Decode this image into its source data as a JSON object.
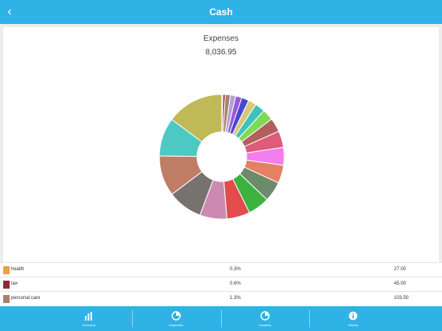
{
  "header": {
    "title": "Cash",
    "back_icon": "chevron-left-icon"
  },
  "chart_data": {
    "type": "pie",
    "title": "Expenses",
    "total": "8,036.95",
    "donut": true,
    "slices": [
      {
        "color": "#e8a04b",
        "value": 0.3
      },
      {
        "color": "#8b2b33",
        "value": 0.6
      },
      {
        "color": "#a7826a",
        "value": 1.3
      },
      {
        "color": "#b1a1ce",
        "value": 1.4
      },
      {
        "color": "#9a58d8",
        "value": 1.6
      },
      {
        "color": "#4747d4",
        "value": 1.9
      },
      {
        "color": "#d8c67a",
        "value": 2.1
      },
      {
        "color": "#3fc1be",
        "value": 2.6
      },
      {
        "color": "#7ed956",
        "value": 2.9
      },
      {
        "color": "#b45e5e",
        "value": 3.6
      },
      {
        "color": "#e05a7a",
        "value": 4.3
      },
      {
        "color": "#f37ded",
        "value": 4.6
      },
      {
        "color": "#e58063",
        "value": 4.7
      },
      {
        "color": "#6d8a6a",
        "value": 5.2
      },
      {
        "color": "#3cb33f",
        "value": 5.6
      },
      {
        "color": "#e24c4c",
        "value": 6.0
      },
      {
        "color": "#cc8ab0",
        "value": 7.0
      },
      {
        "color": "#77716f",
        "value": 9.0
      },
      {
        "color": "#c07d66",
        "value": 10.5
      },
      {
        "color": "#4dc9c4",
        "value": 10.0
      },
      {
        "color": "#c0b958",
        "value": 14.8
      }
    ]
  },
  "legend": [
    {
      "name": "health",
      "percent": "0.3%",
      "amount": "27.00",
      "color": "#e8a04b"
    },
    {
      "name": "tax",
      "percent": "0.6%",
      "amount": "45.00",
      "color": "#8b2b33"
    },
    {
      "name": "personal care",
      "percent": "1.3%",
      "amount": "103.50",
      "color": "#a7826a"
    }
  ],
  "tabs": [
    {
      "label": "Overview",
      "icon": "bar-chart-icon"
    },
    {
      "label": "Expenses",
      "icon": "pie-chart-icon"
    },
    {
      "label": "Incomes",
      "icon": "pie-chart-icon"
    },
    {
      "label": "History",
      "icon": "info-icon"
    }
  ]
}
